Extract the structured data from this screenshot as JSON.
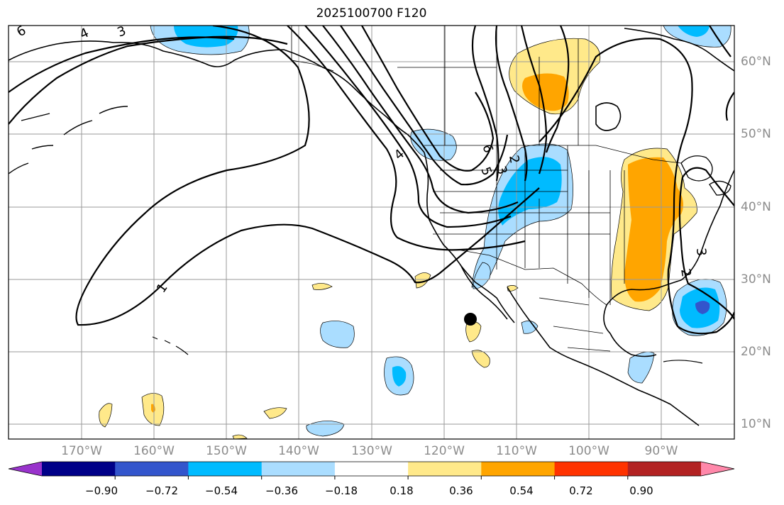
{
  "title": "2025100700 F120",
  "map": {
    "lat_labels": [
      "60°N",
      "50°N",
      "40°N",
      "30°N",
      "20°N",
      "10°N"
    ],
    "lon_labels": [
      "170°W",
      "160°W",
      "150°W",
      "140°W",
      "130°W",
      "120°W",
      "110°W",
      "100°W",
      "90°W"
    ],
    "contour_labels": [
      "6",
      "4",
      "3",
      "1",
      "4",
      "5",
      "3",
      "2",
      "6",
      "2",
      "3"
    ],
    "marker": "black-dot"
  },
  "colorbar": {
    "ticks": [
      "−0.90",
      "−0.72",
      "−0.54",
      "−0.36",
      "−0.18",
      "0.18",
      "0.36",
      "0.54",
      "0.72",
      "0.90"
    ],
    "colors": [
      "#9933cc",
      "#000088",
      "#3355cc",
      "#00bbff",
      "#aaddff",
      "#ffffff",
      "#ffe98a",
      "#ffa500",
      "#ff3300",
      "#b22222",
      "#ff88aa"
    ]
  }
}
